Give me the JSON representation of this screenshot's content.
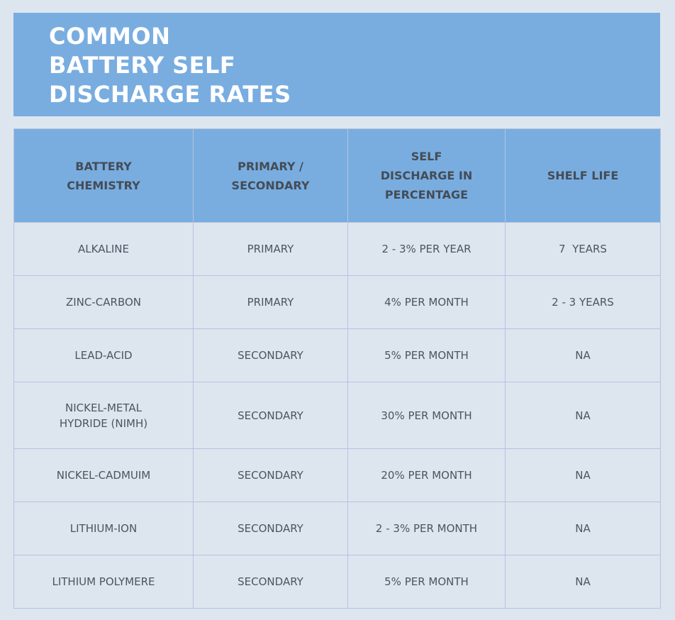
{
  "title_lines": [
    "COMMON",
    "BATTERY SELF",
    "DISCHARGE RATES"
  ],
  "colors": {
    "banner": "#79ade0",
    "page_background": "#dde6ef",
    "title_text": "#ffffff",
    "cell_text": "#4c5460",
    "grid_line": "#b9c0e2"
  },
  "chart_data": {
    "type": "table",
    "title": "COMMON BATTERY SELF DISCHARGE RATES",
    "headers": [
      [
        "BATTERY",
        "CHEMISTRY"
      ],
      [
        "PRIMARY /",
        "SECONDARY"
      ],
      [
        "SELF",
        "DISCHARGE IN",
        "PERCENTAGE"
      ],
      [
        "SHELF LIFE"
      ]
    ],
    "rows": [
      [
        [
          "ALKALINE"
        ],
        [
          "PRIMARY"
        ],
        [
          "2 - 3% PER YEAR"
        ],
        [
          "7  YEARS"
        ]
      ],
      [
        [
          "ZINC-CARBON"
        ],
        [
          "PRIMARY"
        ],
        [
          "4% PER MONTH"
        ],
        [
          "2 - 3 YEARS"
        ]
      ],
      [
        [
          "LEAD-ACID"
        ],
        [
          "SECONDARY"
        ],
        [
          "5% PER MONTH"
        ],
        [
          "NA"
        ]
      ],
      [
        [
          "NICKEL-METAL",
          "HYDRIDE (NIMH)"
        ],
        [
          "SECONDARY"
        ],
        [
          "30% PER MONTH"
        ],
        [
          "NA"
        ]
      ],
      [
        [
          "NICKEL-CADMUIM"
        ],
        [
          "SECONDARY"
        ],
        [
          "20% PER MONTH"
        ],
        [
          "NA"
        ]
      ],
      [
        [
          "LITHIUM-ION"
        ],
        [
          "SECONDARY"
        ],
        [
          "2 - 3% PER MONTH"
        ],
        [
          "NA"
        ]
      ],
      [
        [
          "LITHIUM POLYMERE"
        ],
        [
          "SECONDARY"
        ],
        [
          "5% PER MONTH"
        ],
        [
          "NA"
        ]
      ]
    ]
  }
}
